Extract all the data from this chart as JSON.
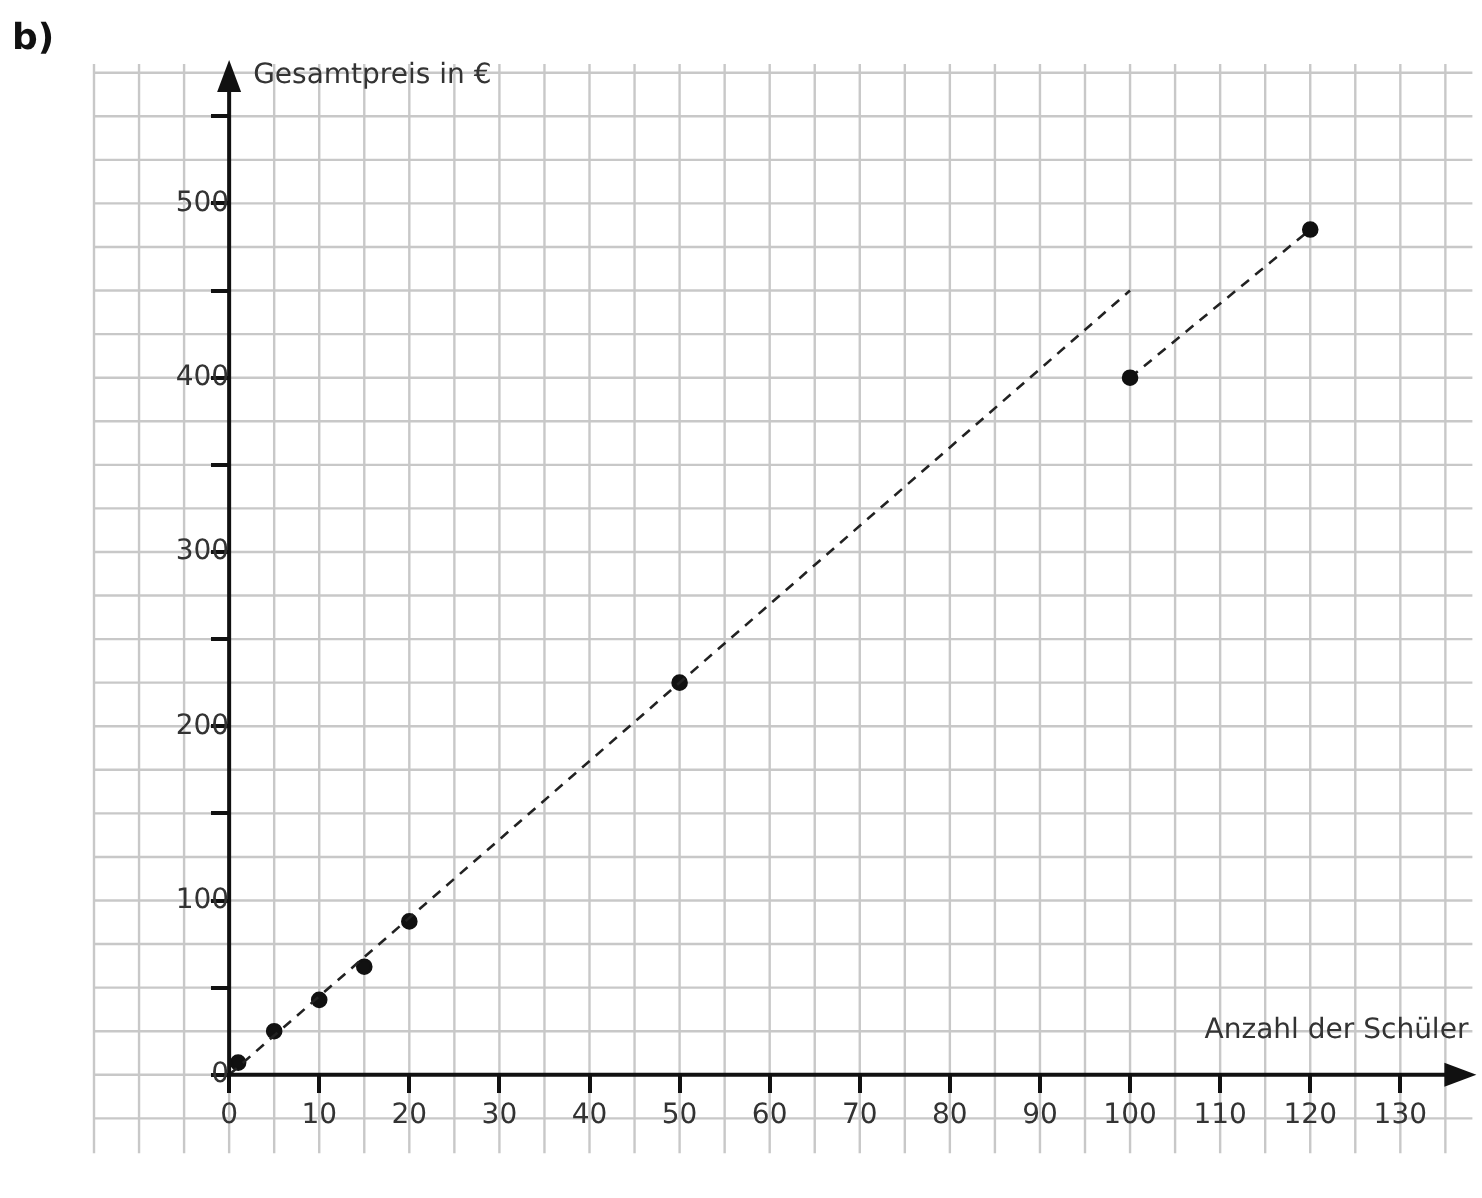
{
  "chart_data": {
    "type": "scatter",
    "title": "b)",
    "xlabel": "Anzahl der Schüler",
    "ylabel": "Gesamtpreis in €",
    "series": [
      {
        "type": "line",
        "color": "#222222",
        "x": [
          0,
          100
        ],
        "values": [
          0,
          450
        ],
        "line_style": "dashed",
        "marker": "none"
      },
      {
        "type": "scatter",
        "color": "#111111",
        "x": [
          1,
          5,
          10,
          15,
          20,
          50,
          100,
          120
        ],
        "values": [
          7,
          25,
          43,
          62,
          88,
          225,
          400,
          485
        ],
        "marker": "circle"
      },
      {
        "type": "line",
        "color": "#222222",
        "x": [
          100,
          120
        ],
        "values": [
          400,
          485
        ],
        "line_style": "dashed",
        "marker": "none"
      }
    ],
    "xlim": [
      -15,
      138
    ],
    "ylim": [
      -45,
      580
    ],
    "xticks": [
      0,
      10,
      20,
      30,
      40,
      50,
      60,
      70,
      80,
      90,
      100,
      110,
      120,
      130
    ],
    "yticks": [
      0,
      {
        "value": 50,
        "label": null
      },
      100,
      {
        "value": 150,
        "label": null
      },
      200,
      {
        "value": 250,
        "label": null
      },
      300,
      {
        "value": 350,
        "label": null
      },
      400,
      {
        "value": 450,
        "label": null
      },
      500,
      {
        "value": 550,
        "label": null
      }
    ],
    "grid": true,
    "legend": false
  }
}
